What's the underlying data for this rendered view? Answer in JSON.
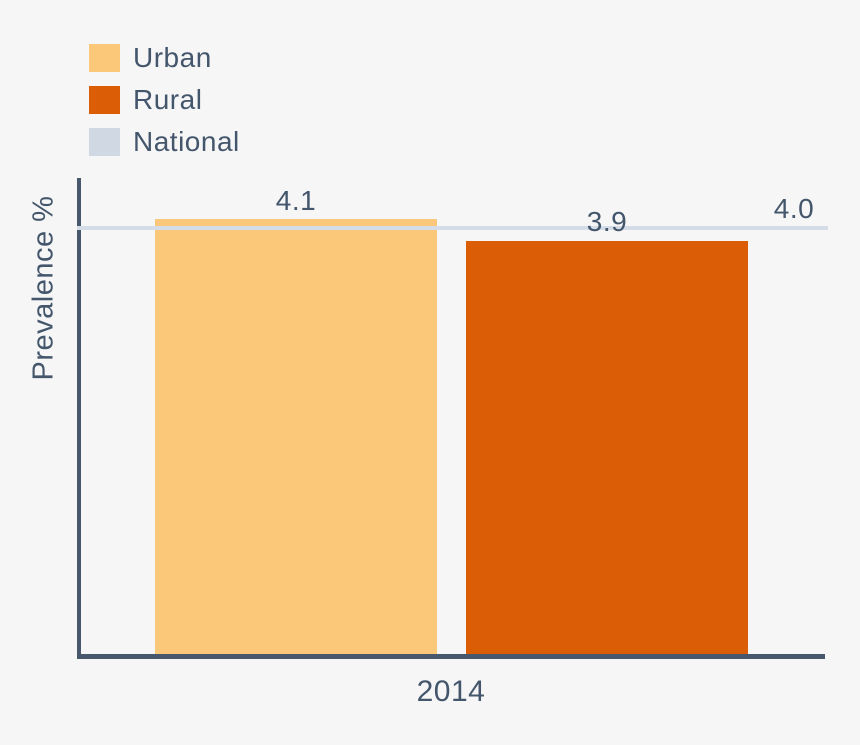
{
  "chart_data": {
    "type": "bar",
    "title": "",
    "categories": [
      "2014"
    ],
    "series": [
      {
        "name": "Urban",
        "values": [
          4.1
        ],
        "color": "#FAC878",
        "data_label": "4.1"
      },
      {
        "name": "Rural",
        "values": [
          3.9
        ],
        "color": "#DB5E06",
        "data_label": "3.9"
      }
    ],
    "reference_line": {
      "name": "National",
      "value": 4.0,
      "color": "#D3DCE7",
      "data_label": "4.0"
    },
    "xlabel": "",
    "ylabel": "Prevalence %",
    "ylim": [
      0,
      4.5
    ],
    "grid": false,
    "legend_position": "top-left"
  },
  "legend": {
    "items": [
      {
        "label": "Urban",
        "color": "#FAC878"
      },
      {
        "label": "Rural",
        "color": "#DB5E06"
      },
      {
        "label": "National",
        "color": "#CFD8E3"
      }
    ]
  },
  "axes": {
    "y_axis_label": "Prevalence %",
    "x_tick_label": "2014"
  },
  "value_labels": {
    "urban": "4.1",
    "rural": "3.9",
    "national": "4.0"
  },
  "colors": {
    "background": "#F6F6F7",
    "text": "#44566B",
    "axis": "#47586C",
    "urban_bar": "#FAC878",
    "rural_bar": "#DB5E06",
    "national_line": "#D3DCE7",
    "national_swatch": "#CFD8E3"
  }
}
